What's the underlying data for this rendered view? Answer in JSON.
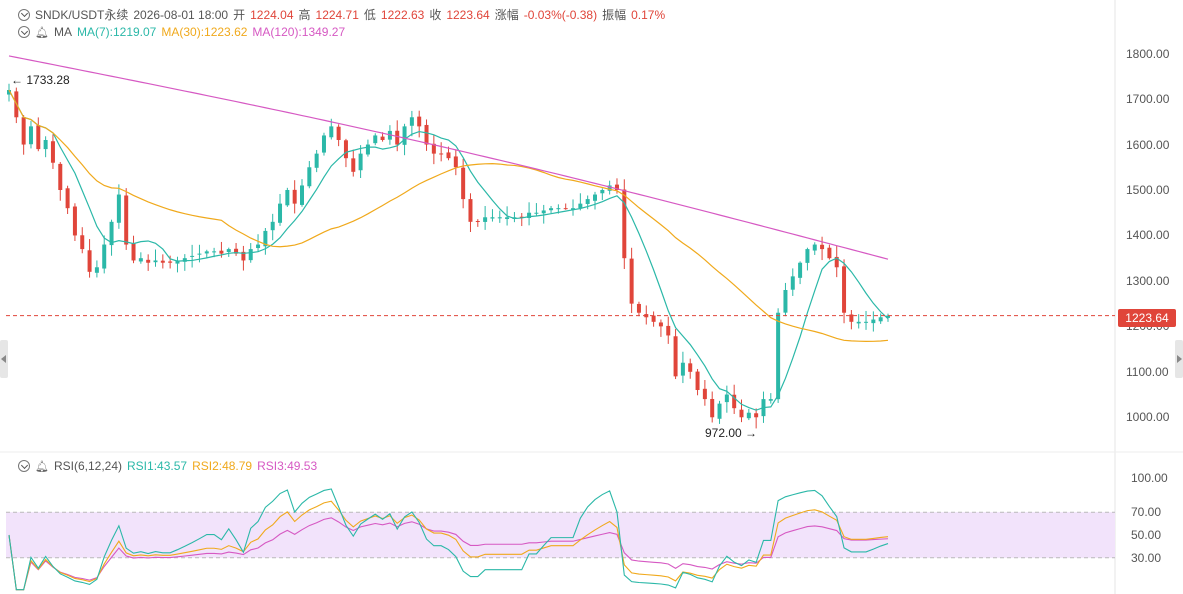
{
  "header": {
    "symbol": "SNDK/USDT永续",
    "datetime": "2026-08-01 18:00",
    "open_label": "开",
    "open_value": "1224.04",
    "high_label": "高",
    "high_value": "1224.71",
    "low_label": "低",
    "low_value": "1222.63",
    "close_label": "收",
    "close_value": "1223.64",
    "change_label": "涨幅",
    "change_value": "-0.03%(-0.38)",
    "amp_label": "振幅",
    "amp_value": "0.17%"
  },
  "ma_legend": {
    "label": "MA",
    "ma7": "MA(7):1219.07",
    "ma30": "MA(30):1223.62",
    "ma120": "MA(120):1349.27"
  },
  "rsi_legend": {
    "label": "RSI(6,12,24)",
    "rsi1": "RSI1:43.57",
    "rsi2": "RSI2:48.79",
    "rsi3": "RSI3:49.53"
  },
  "price_axis": [
    "1800.00",
    "1700.00",
    "1600.00",
    "1500.00",
    "1400.00",
    "1300.00",
    "1200.00",
    "1100.00",
    "1000.00"
  ],
  "rsi_axis": [
    "100.00",
    "70.00",
    "50.00",
    "30.00"
  ],
  "current_price": "1223.64",
  "annotations": {
    "high": "1733.28",
    "low": "972.00"
  },
  "colors": {
    "up": "#2bb8a8",
    "down": "#e0453a",
    "ma7": "#2bb8a8",
    "ma30": "#f0a91c",
    "ma120": "#d659c3",
    "rsi_band": "#f2e3fb"
  },
  "chart_data": {
    "type": "candlestick",
    "price_range": [
      950,
      1830
    ],
    "rsi_range": [
      0,
      100
    ],
    "closes": [
      1720,
      1660,
      1600,
      1640,
      1590,
      1610,
      1560,
      1500,
      1460,
      1400,
      1370,
      1320,
      1330,
      1380,
      1430,
      1490,
      1380,
      1345,
      1350,
      1340,
      1345,
      1340,
      1340,
      1345,
      1350,
      1355,
      1360,
      1365,
      1365,
      1360,
      1370,
      1360,
      1345,
      1370,
      1380,
      1410,
      1430,
      1470,
      1500,
      1470,
      1510,
      1550,
      1580,
      1620,
      1640,
      1610,
      1570,
      1540,
      1580,
      1600,
      1620,
      1610,
      1630,
      1600,
      1640,
      1660,
      1640,
      1600,
      1580,
      1580,
      1570,
      1550,
      1480,
      1430,
      1430,
      1440,
      1440,
      1440,
      1440,
      1440,
      1440,
      1450,
      1450,
      1455,
      1460,
      1460,
      1460,
      1460,
      1470,
      1480,
      1490,
      1500,
      1510,
      1500,
      1350,
      1250,
      1230,
      1220,
      1210,
      1200,
      1180,
      1090,
      1120,
      1100,
      1060,
      1040,
      1000,
      1030,
      1050,
      1020,
      1000,
      1010,
      1000,
      1040,
      1040,
      1230,
      1280,
      1310,
      1340,
      1370,
      1380,
      1370,
      1350,
      1330,
      1230,
      1210,
      1210,
      1210,
      1215,
      1220,
      1223.64
    ],
    "ma7_end": 1219.07,
    "ma30_end": 1223.62,
    "ma120_end": 1349.27,
    "rsi_end": {
      "rsi1": 43.57,
      "rsi2": 48.79,
      "rsi3": 49.53
    }
  }
}
